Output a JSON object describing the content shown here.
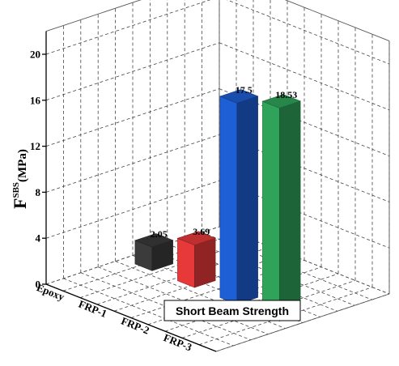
{
  "chart_data": {
    "type": "bar",
    "categories": [
      "Epoxy",
      "FRP-1",
      "FRP-2",
      "FRP-3"
    ],
    "series": [
      {
        "values": [
          2.05,
          3.69,
          17.5,
          18.53
        ]
      }
    ],
    "data_labels": [
      "2.05",
      "3.69",
      "17.5",
      "18.53"
    ],
    "colors": [
      "#3b3b3b",
      "#e8393a",
      "#1f5fd6",
      "#2fa35a"
    ],
    "title": "",
    "ylabel": {
      "main": "F",
      "superscript": "SBS",
      "unit": "(MPa)"
    },
    "yticks": [
      "0",
      "4",
      "8",
      "12",
      "16",
      "20"
    ],
    "ylim": [
      0,
      22
    ],
    "grid": true,
    "legend": {
      "text": "Short Beam Strength",
      "placement": "bottom-center"
    }
  }
}
